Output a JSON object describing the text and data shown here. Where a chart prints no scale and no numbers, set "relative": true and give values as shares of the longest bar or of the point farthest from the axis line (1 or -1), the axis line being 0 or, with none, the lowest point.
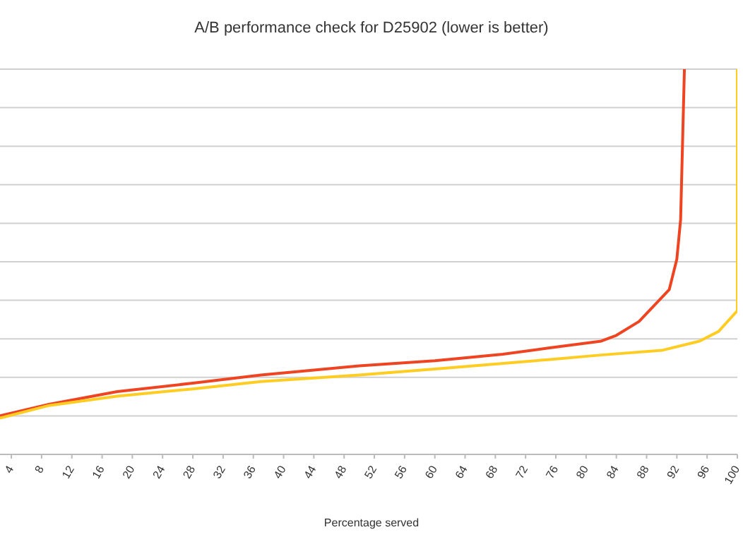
{
  "chart_data": {
    "type": "line",
    "title": "A/B performance check for D25902 (lower is better)",
    "xlabel": "Percentage served",
    "relative": true,
    "grid": "y",
    "legend": false,
    "marker": "none",
    "line_style": "solid",
    "xlim": [
      2.5,
      100
    ],
    "xticks": [
      4,
      8,
      12,
      16,
      20,
      24,
      28,
      32,
      36,
      40,
      44,
      48,
      52,
      56,
      60,
      64,
      68,
      72,
      76,
      80,
      84,
      88,
      92,
      96,
      100
    ],
    "series": [
      {
        "color": "#ee4422",
        "x": [
          2.5,
          9,
          18,
          28,
          37,
          50,
          60,
          69,
          75,
          82,
          84,
          87,
          91,
          92,
          92.5,
          93
        ],
        "values": [
          0.1,
          0.13,
          0.163,
          0.185,
          0.206,
          0.23,
          0.243,
          0.26,
          0.276,
          0.294,
          0.309,
          0.345,
          0.428,
          0.507,
          0.61,
          1
        ]
      },
      {
        "color": "#ffcc22",
        "x": [
          2.5,
          9,
          18,
          28,
          37,
          50,
          62,
          75,
          82,
          90,
          95,
          97.5,
          100,
          100
        ],
        "values": [
          0.094,
          0.127,
          0.151,
          0.17,
          0.189,
          0.206,
          0.225,
          0.246,
          0.258,
          0.27,
          0.294,
          0.319,
          0.373,
          1
        ]
      }
    ]
  }
}
